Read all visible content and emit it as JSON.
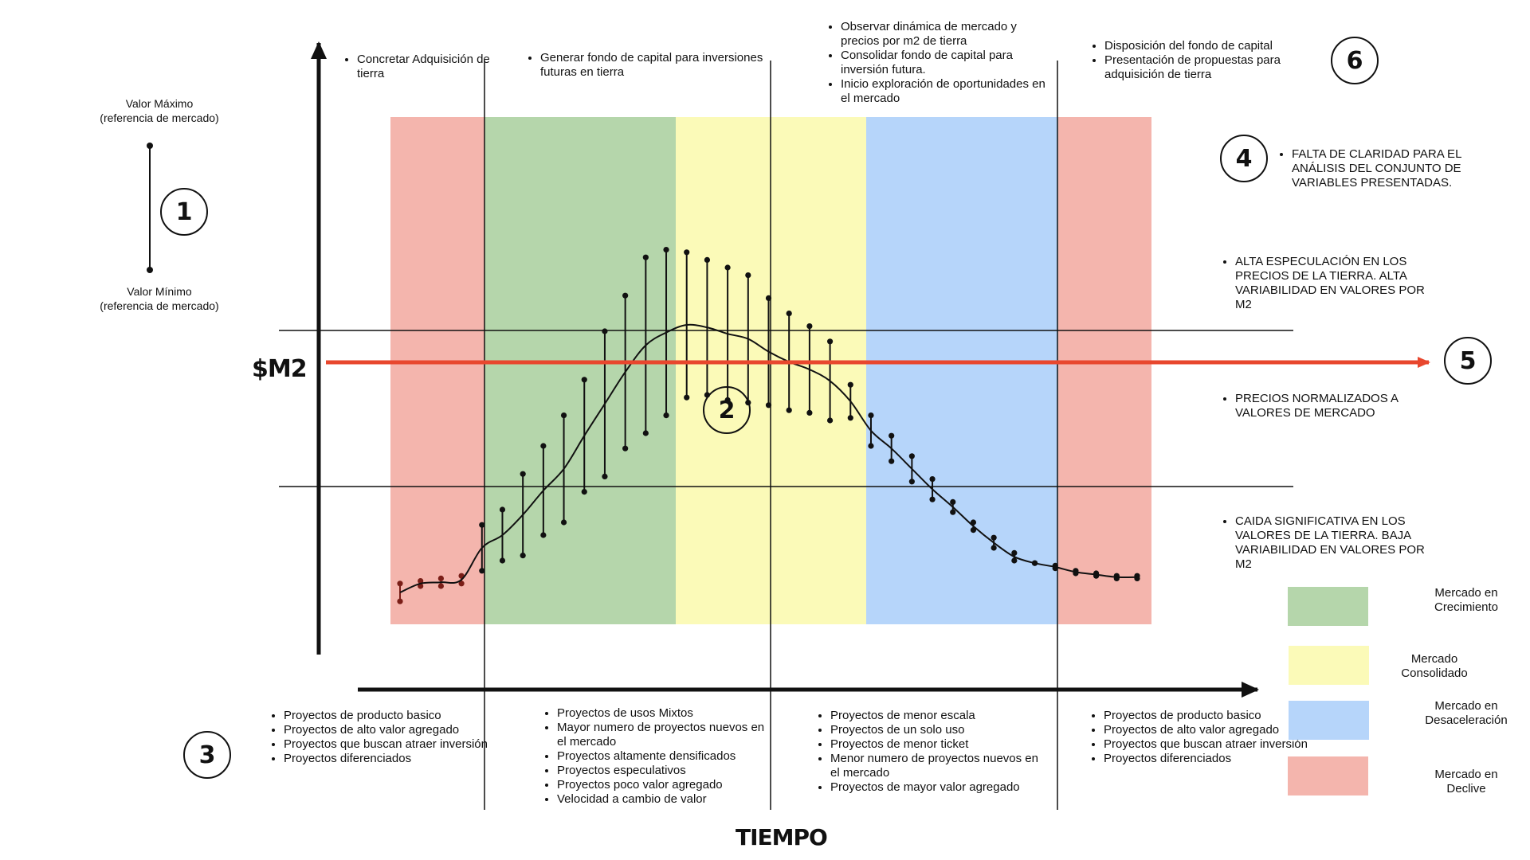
{
  "chart_data": {
    "type": "line",
    "xlabel": "TIEMPO",
    "ylabel": "$M2",
    "phases": [
      {
        "name": "Mercado en Declive",
        "color": "#f4b5ad"
      },
      {
        "name": "Mercado en Crecimiento",
        "color": "#b5d6ab"
      },
      {
        "name": "Mercado Consolidado",
        "color": "#fbfab8"
      },
      {
        "name": "Mercado en Desaceleración",
        "color": "#b6d5fa"
      },
      {
        "name": "Mercado en Declive",
        "color": "#f4b5ad"
      }
    ],
    "trend_color": "#e8472e",
    "range_bars": [
      [
        0.16,
        0.09
      ],
      [
        0.17,
        0.15
      ],
      [
        0.18,
        0.15
      ],
      [
        0.19,
        0.16
      ],
      [
        0.21,
        0.39
      ],
      [
        0.25,
        0.45
      ],
      [
        0.27,
        0.59
      ],
      [
        0.35,
        0.7
      ],
      [
        0.4,
        0.82
      ],
      [
        0.52,
        0.96
      ],
      [
        0.58,
        1.15
      ],
      [
        0.69,
        1.29
      ],
      [
        0.75,
        1.44
      ],
      [
        0.82,
        1.47
      ],
      [
        0.89,
        1.46
      ],
      [
        0.9,
        1.43
      ],
      [
        0.88,
        1.4
      ],
      [
        0.87,
        1.37
      ],
      [
        0.86,
        1.28
      ],
      [
        0.84,
        1.22
      ],
      [
        0.83,
        1.17
      ],
      [
        0.8,
        1.11
      ],
      [
        0.81,
        0.94
      ],
      [
        0.7,
        0.82
      ],
      [
        0.64,
        0.74
      ],
      [
        0.56,
        0.66
      ],
      [
        0.49,
        0.57
      ],
      [
        0.44,
        0.48
      ],
      [
        0.37,
        0.4
      ],
      [
        0.3,
        0.34
      ],
      [
        0.25,
        0.28
      ],
      [
        0.24,
        0.24
      ],
      [
        0.23,
        0.22
      ],
      [
        0.21,
        0.2
      ],
      [
        0.2,
        0.19
      ],
      [
        0.19,
        0.18
      ],
      [
        0.19,
        0.18
      ]
    ]
  },
  "range_legend": {
    "max_label_line1": "Valor Máximo",
    "max_label_line2": "(referencia de mercado)",
    "min_label_line1": "Valor Mínimo",
    "min_label_line2": "(referencia de mercado)"
  },
  "badges": {
    "b1": "1",
    "b2": "2",
    "b3": "3",
    "b4": "4",
    "b5": "5",
    "b6": "6"
  },
  "top_notes": {
    "col1": [
      "Concretar Adquisición de tierra"
    ],
    "col2": [
      "Generar fondo de capital para inversiones futuras en tierra"
    ],
    "col3": [
      "Observar dinámica de mercado y precios por m2 de tierra",
      "Consolidar fondo de capital para inversión futura.",
      "Inicio exploración de oportunidades en el mercado"
    ],
    "col4": [
      "Disposición del fondo de capital",
      "Presentación de propuestas para adquisición de tierra"
    ]
  },
  "right_notes": {
    "n4": "FALTA DE CLARIDAD PARA EL ANÁLISIS DEL CONJUNTO DE VARIABLES PRESENTADAS.",
    "high": "ALTA ESPECULACIÓN EN LOS PRECIOS DE LA TIERRA. ALTA VARIABILIDAD EN VALORES POR M2",
    "mid": "PRECIOS NORMALIZADOS A VALORES DE MERCADO",
    "low": "CAIDA SIGNIFICATIVA EN LOS VALORES DE LA TIERRA. BAJA VARIABILIDAD EN VALORES POR M2"
  },
  "bottom_notes": {
    "col1": [
      "Proyectos de producto basico",
      "Proyectos de alto valor agregado",
      "Proyectos que buscan atraer inversión",
      "Proyectos diferenciados"
    ],
    "col2": [
      "Proyectos de usos Mixtos",
      "Mayor numero de proyectos nuevos en el mercado",
      "Proyectos altamente densificados",
      "Proyectos especulativos",
      "Proyectos poco valor agregado",
      "Velocidad a cambio de valor"
    ],
    "col3": [
      "Proyectos de menor escala",
      "Proyectos de un solo uso",
      "Proyectos de menor ticket",
      "Menor numero de proyectos nuevos en el mercado",
      "Proyectos de mayor valor agregado"
    ],
    "col4": [
      "Proyectos de producto basico",
      "Proyectos de alto valor agregado",
      "Proyectos que buscan atraer inversión",
      "Proyectos diferenciados"
    ]
  },
  "legend": [
    {
      "label_line1": "Mercado en",
      "label_line2": "Crecimiento",
      "color": "#b5d6ab"
    },
    {
      "label_line1": "Mercado",
      "label_line2": "Consolidado",
      "color": "#fbfab8"
    },
    {
      "label_line1": "Mercado en",
      "label_line2": "Desaceleración",
      "color": "#b6d5fa"
    },
    {
      "label_line1": "Mercado en",
      "label_line2": "Declive",
      "color": "#f4b5ad"
    }
  ]
}
